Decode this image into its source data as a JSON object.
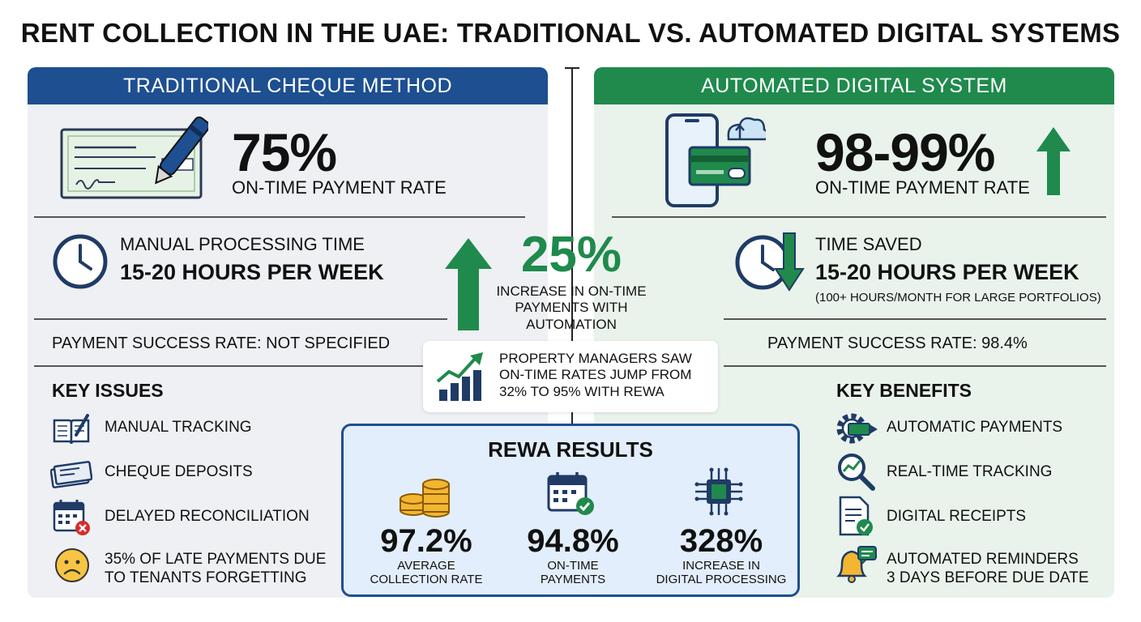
{
  "title": "RENT COLLECTION IN THE UAE: TRADITIONAL VS. AUTOMATED DIGITAL SYSTEMS",
  "traditional": {
    "header": "TRADITIONAL CHEQUE METHOD",
    "rate_value": "75%",
    "rate_label": "ON-TIME PAYMENT RATE",
    "time_label": "MANUAL PROCESSING TIME",
    "time_value": "15-20 HOURS PER WEEK",
    "success": "PAYMENT SUCCESS RATE: NOT SPECIFIED",
    "issues_title": "KEY ISSUES",
    "issues": [
      {
        "icon": "manual-tracking-icon",
        "text": "MANUAL TRACKING"
      },
      {
        "icon": "cheque-icon",
        "text": "CHEQUE DEPOSITS"
      },
      {
        "icon": "calendar-x-icon",
        "text": "DELAYED RECONCILIATION"
      },
      {
        "icon": "sad-face-icon",
        "text_line1": "35% OF LATE PAYMENTS DUE",
        "text_line2": "TO TENANTS FORGETTING"
      }
    ]
  },
  "automated": {
    "header": "AUTOMATED DIGITAL SYSTEM",
    "rate_value": "98-99%",
    "rate_label": "ON-TIME PAYMENT RATE",
    "time_label": "TIME SAVED",
    "time_value": "15-20 HOURS PER WEEK",
    "time_note": "(100+ HOURS/MONTH FOR LARGE PORTFOLIOS)",
    "success": "PAYMENT SUCCESS RATE: 98.4%",
    "benefits_title": "KEY BENEFITS",
    "benefits": [
      {
        "icon": "gear-payment-icon",
        "text": "AUTOMATIC PAYMENTS"
      },
      {
        "icon": "magnifier-chart-icon",
        "text": "REAL-TIME TRACKING"
      },
      {
        "icon": "receipt-check-icon",
        "text": "DIGITAL RECEIPTS"
      },
      {
        "icon": "bell-message-icon",
        "text_line1": "AUTOMATED REMINDERS",
        "text_line2": "3 DAYS BEFORE DUE DATE"
      }
    ]
  },
  "center": {
    "value": "25%",
    "line1": "INCREASE IN ON-TIME",
    "line2": "PAYMENTS WITH",
    "line3": "AUTOMATION"
  },
  "callout": {
    "line1": "PROPERTY MANAGERS SAW",
    "line2": "ON-TIME RATES JUMP FROM",
    "line3": "32% TO 95% WITH REWA"
  },
  "rewa": {
    "title": "REWA RESULTS",
    "stats": [
      {
        "value": "97.2%",
        "label1": "AVERAGE",
        "label2": "COLLECTION RATE"
      },
      {
        "value": "94.8%",
        "label1": "ON-TIME",
        "label2": "PAYMENTS"
      },
      {
        "value": "328%",
        "label1": "INCREASE IN",
        "label2": "DIGITAL PROCESSING"
      }
    ]
  },
  "colors": {
    "blue": "#1d4f91",
    "green": "#1f8a4c"
  }
}
